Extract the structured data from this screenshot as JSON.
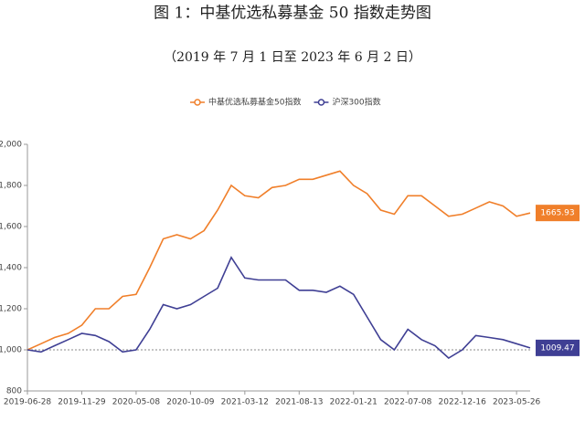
{
  "chart_data": {
    "type": "line",
    "title": "图 1：中基优选私募基金 50 指数走势图",
    "subtitle": "（2019 年 7 月 1 日至 2023 年 6 月 2 日）",
    "categories": [
      "2019-06-28",
      null,
      null,
      null,
      "2019-11-29",
      null,
      null,
      null,
      "2020-05-08",
      null,
      null,
      null,
      "2020-10-09",
      null,
      null,
      null,
      "2021-03-12",
      null,
      null,
      null,
      "2021-08-13",
      null,
      null,
      null,
      "2022-01-21",
      null,
      null,
      null,
      "2022-07-08",
      null,
      null,
      null,
      "2022-12-16",
      null,
      null,
      null,
      "2023-05-26",
      null
    ],
    "series": [
      {
        "name": "中基优选私募基金50指数",
        "color": "#f07f2a",
        "values": [
          1000,
          1030,
          1060,
          1080,
          1120,
          1200,
          1200,
          1260,
          1270,
          1400,
          1540,
          1560,
          1540,
          1580,
          1680,
          1800,
          1750,
          1740,
          1790,
          1800,
          1830,
          1830,
          1850,
          1870,
          1800,
          1760,
          1680,
          1660,
          1750,
          1750,
          1700,
          1650,
          1660,
          1690,
          1720,
          1700,
          1650,
          1665.93
        ]
      },
      {
        "name": "沪深300指数",
        "color": "#3f3f94",
        "values": [
          1000,
          990,
          1020,
          1050,
          1080,
          1070,
          1040,
          990,
          1000,
          1100,
          1220,
          1200,
          1220,
          1260,
          1300,
          1450,
          1350,
          1340,
          1340,
          1340,
          1290,
          1290,
          1280,
          1310,
          1270,
          1160,
          1050,
          1000,
          1100,
          1050,
          1020,
          960,
          1000,
          1070,
          1060,
          1050,
          1030,
          1009.47
        ]
      }
    ],
    "ylim": [
      800,
      2000
    ],
    "yticks": [
      800,
      {
        "value": 1000,
        "label": "1,000"
      },
      {
        "value": 1200,
        "label": "1,200"
      },
      {
        "value": 1400,
        "label": "1,400"
      },
      {
        "value": 1600,
        "label": "1,600"
      },
      {
        "value": 1800,
        "label": "1,800"
      },
      {
        "value": 2000,
        "label": "2,000"
      }
    ],
    "reference_line": 1000,
    "legend": "top"
  }
}
